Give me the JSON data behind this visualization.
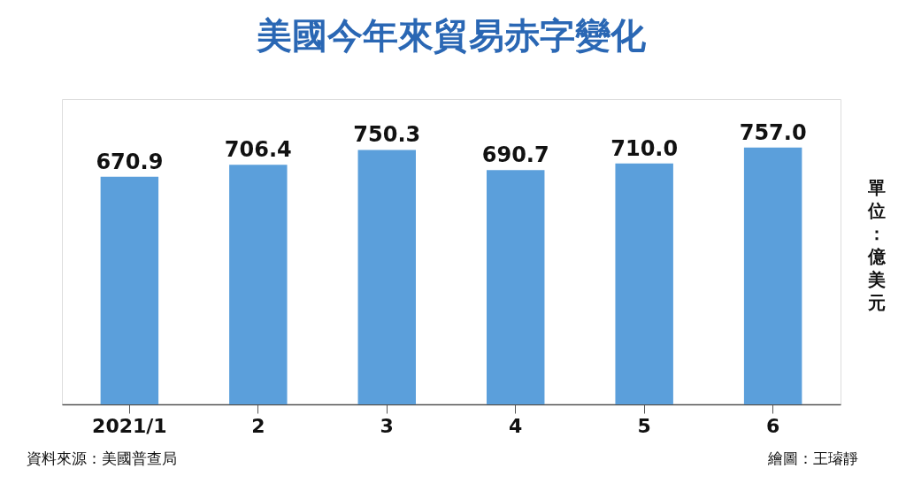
{
  "chart_data": {
    "type": "bar",
    "title": "美國今年來貿易赤字變化",
    "ylabel": "單位：億美元",
    "categories": [
      "2021/1",
      "2",
      "3",
      "4",
      "5",
      "6"
    ],
    "values": [
      670.9,
      706.4,
      750.3,
      690.7,
      710.0,
      757.0
    ],
    "value_labels": [
      "670.9",
      "706.4",
      "750.3",
      "690.7",
      "710.0",
      "757.0"
    ],
    "color": "#5b9fdb",
    "ylim": [
      0,
      900
    ],
    "tick_labels": "x",
    "grid": false,
    "annotations": [
      "資料來源：美國普查局",
      "繪圖：王璿靜"
    ]
  }
}
